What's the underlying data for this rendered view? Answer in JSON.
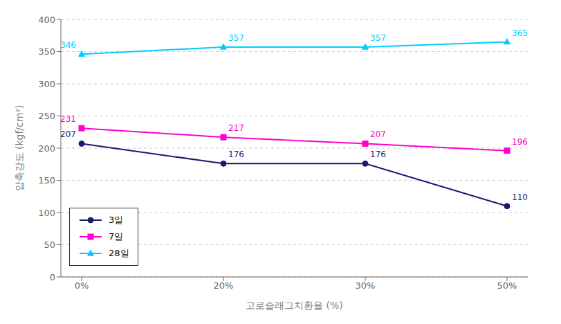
{
  "chart_data": {
    "type": "line",
    "categories": [
      "0%",
      "20%",
      "30%",
      "50%"
    ],
    "series": [
      {
        "name": "3일",
        "color": "#191970",
        "marker": "circle",
        "values": [
          207,
          176,
          176,
          110
        ]
      },
      {
        "name": "7일",
        "color": "#FF00CC",
        "marker": "square",
        "values": [
          231,
          217,
          207,
          196
        ]
      },
      {
        "name": "28일",
        "color": "#00CCFF",
        "marker": "triangle",
        "values": [
          346,
          357,
          357,
          365
        ]
      }
    ],
    "xlabel": "고로슬래그치환율 (%)",
    "ylabel": "압축강도 (kgf/cm²)",
    "ylim": [
      0,
      400
    ],
    "yticks": [
      0,
      50,
      100,
      150,
      200,
      250,
      300,
      350,
      400
    ],
    "grid": true,
    "legend": "lower left",
    "data_labels": true
  }
}
